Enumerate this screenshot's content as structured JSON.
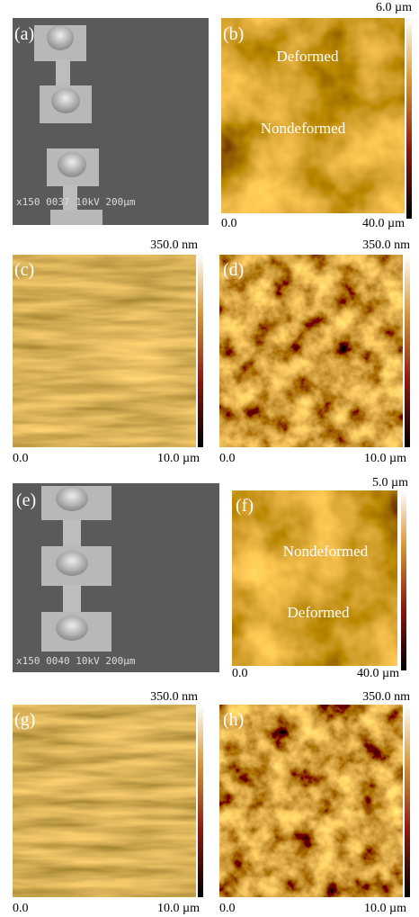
{
  "panels": [
    {
      "label": "(a)",
      "caption": "x150  0037  10kV 200μm"
    },
    {
      "label": "(b)",
      "scale_max": "6.0 µm",
      "x_min": "0.0",
      "x_max": "40.0 µm",
      "annotations": [
        "Deformed",
        "Nondeformed"
      ]
    },
    {
      "label": "(c)",
      "scale_max": "350.0 nm",
      "x_min": "0.0",
      "x_max": "10.0 µm"
    },
    {
      "label": "(d)",
      "scale_max": "350.0 nm",
      "x_min": "0.0",
      "x_max": "10.0 µm"
    },
    {
      "label": "(e)",
      "caption": "x150  0040  10kV 200μm"
    },
    {
      "label": "(f)",
      "scale_max": "5.0 µm",
      "x_min": "0.0",
      "x_max": "40.0 µm",
      "annotations": [
        "Nondeformed",
        "Deformed"
      ]
    },
    {
      "label": "(g)",
      "scale_max": "350.0 nm",
      "x_min": "0.0",
      "x_max": "10.0 µm"
    },
    {
      "label": "(h)",
      "scale_max": "350.0 nm",
      "x_min": "0.0",
      "x_max": "10.0 µm"
    }
  ]
}
